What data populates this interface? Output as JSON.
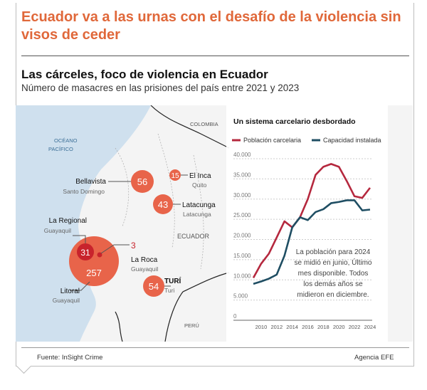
{
  "headline": "Ecuador va a las urnas con el desafío de la violencia sin visos de ceder",
  "title": "Las cárceles, foco de violencia en Ecuador",
  "subtitle": "Número de masacres en las prisiones del país entre 2021 y 2023",
  "map": {
    "labels": {
      "ocean1": "OCÉANO",
      "ocean2": "PACÍFICO",
      "colombia": "COLOMBIA",
      "ecuador": "ECUADOR",
      "peru": "PERÚ"
    },
    "prisons": [
      {
        "name": "Bellavista",
        "city": "Santo Domingo",
        "count": "56"
      },
      {
        "name": "El Inca",
        "city": "Quito",
        "count": "15"
      },
      {
        "name": "Latacunga",
        "city": "Latacunga",
        "count": "43"
      },
      {
        "name": "La Regional",
        "city": "Guayaquil",
        "count": "31"
      },
      {
        "name": "La Roca",
        "city": "Guayaquil",
        "count": "3"
      },
      {
        "name": "Litoral",
        "city": "Guayaquil",
        "count": "257"
      },
      {
        "name": "TURÍ",
        "city": "Turi",
        "count": "54"
      }
    ],
    "colors": {
      "bubble": "#e8644a",
      "bubble_dark": "#c8232c",
      "sea": "#cfe0ee",
      "land": "#f4f4f4"
    }
  },
  "chart_data": {
    "type": "line",
    "title": "Un sistema carcelario desbordado",
    "x": [
      2009,
      2010,
      2011,
      2012,
      2013,
      2014,
      2015,
      2016,
      2017,
      2018,
      2019,
      2020,
      2021,
      2022,
      2023,
      2024
    ],
    "series": [
      {
        "name": "Población carcelaria",
        "color": "#b5283e",
        "values": [
          10500,
          14000,
          16500,
          20500,
          24500,
          23000,
          25500,
          30000,
          36000,
          38000,
          38700,
          38000,
          34500,
          30700,
          30300,
          32800
        ]
      },
      {
        "name": "Capacidad instalada",
        "color": "#1f4e63",
        "values": [
          9000,
          9600,
          10300,
          11300,
          16000,
          23000,
          25500,
          24800,
          26800,
          27500,
          29000,
          29300,
          29700,
          29700,
          27200,
          27400
        ]
      }
    ],
    "yticks": [
      "0",
      "5.000",
      "10.000",
      "15.000",
      "20.000",
      "25.000",
      "30.000",
      "35.000",
      "40.000"
    ],
    "xticks": [
      "2010",
      "2012",
      "2014",
      "2016",
      "2018",
      "2020",
      "2022",
      "2024"
    ],
    "ylim": [
      0,
      40000
    ],
    "grid": true,
    "legend": "top",
    "annotation": [
      "La población para 2024",
      "se midió en junio, Último",
      "mes disponible. Todos",
      "los demás años se",
      "midieron en diciembre."
    ]
  },
  "footer": {
    "source": "Fuente: InSight Crime",
    "agency": "Agencia EFE"
  }
}
